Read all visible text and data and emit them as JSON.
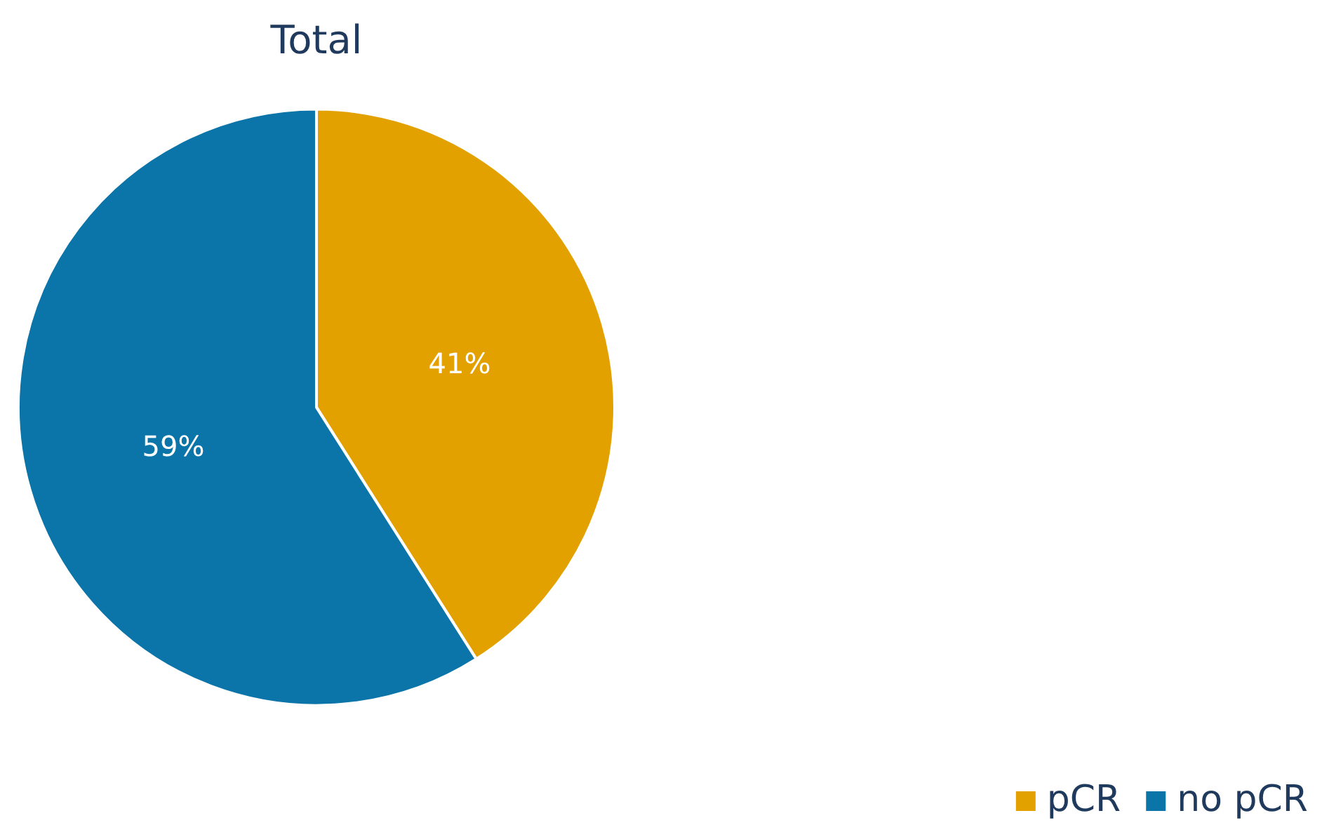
{
  "chart_data": {
    "type": "pie",
    "title": "Total",
    "categories": [
      "pCR",
      "no pCR"
    ],
    "values": [
      41,
      59
    ],
    "colors": [
      "#e3a100",
      "#0b74a8"
    ],
    "value_labels": [
      "41%",
      "59%"
    ],
    "legend": "bottom right"
  }
}
